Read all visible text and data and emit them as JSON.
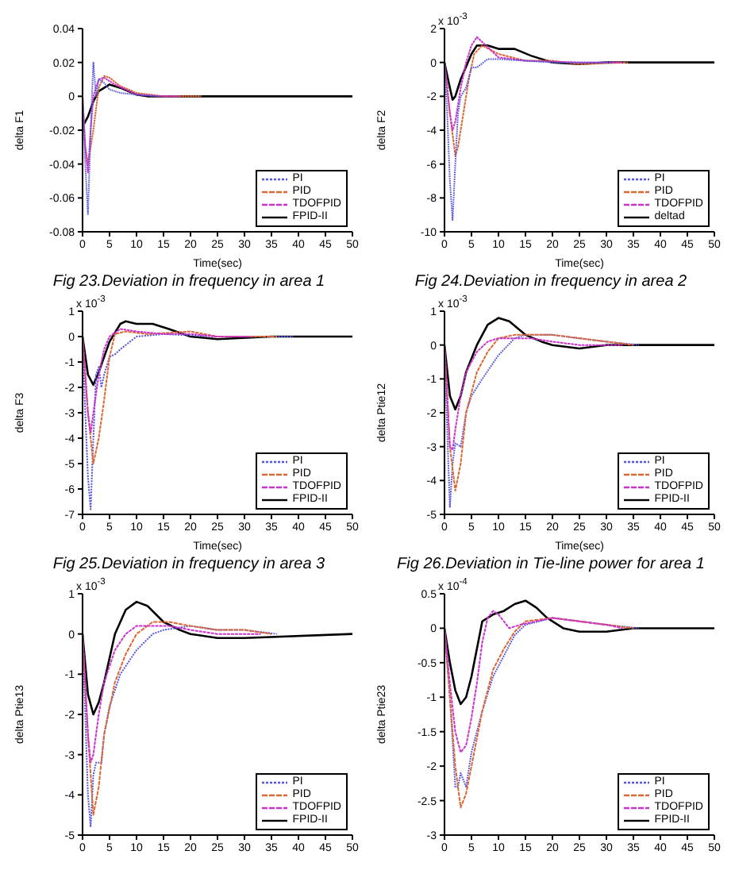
{
  "chart_data": [
    {
      "type": "line",
      "title": "Fig 23.Deviation in frequency in area 1",
      "xlabel": "Time(sec)",
      "ylabel": "delta F1",
      "xlim": [
        0,
        50
      ],
      "xticks": [
        0,
        5,
        10,
        15,
        20,
        25,
        30,
        35,
        40,
        45,
        50
      ],
      "ylim": [
        -0.08,
        0.04
      ],
      "yticks": [
        -0.08,
        -0.06,
        -0.04,
        -0.02,
        0,
        0.02,
        0.04
      ],
      "legend": "bottom right",
      "marker": "none",
      "series": [
        {
          "name": "PI",
          "color": "#5555dd",
          "line_style": "dotted",
          "x": [
            0,
            0.5,
            1,
            1.5,
            2,
            2.5,
            3,
            4,
            5,
            7,
            10,
            14
          ],
          "values": [
            0,
            -0.04,
            -0.07,
            -0.02,
            0.02,
            0.0,
            0.01,
            0.008,
            0.004,
            0.002,
            0.001,
            0
          ]
        },
        {
          "name": "PID",
          "color": "#dd6633",
          "line_style": "dashed",
          "x": [
            0,
            0.5,
            1,
            2,
            3,
            4,
            5,
            7,
            10,
            15,
            22
          ],
          "values": [
            0,
            -0.03,
            -0.04,
            -0.02,
            0.005,
            0.012,
            0.011,
            0.006,
            0.002,
            0,
            0
          ]
        },
        {
          "name": "TDOFPID",
          "color": "#cc33cc",
          "line_style": "dashed",
          "x": [
            0,
            0.5,
            1,
            1.5,
            2,
            3,
            4,
            6,
            10,
            15,
            18
          ],
          "values": [
            0,
            -0.03,
            -0.045,
            -0.02,
            0,
            0.01,
            0.011,
            0.007,
            0.001,
            0,
            0
          ]
        },
        {
          "name": "FPID-II",
          "color": "#000000",
          "line_style": "solid",
          "x": [
            0,
            1,
            2,
            3,
            5,
            7,
            10,
            12,
            20,
            50
          ],
          "values": [
            -0.018,
            -0.012,
            -0.003,
            0.003,
            0.007,
            0.005,
            0.001,
            0,
            0,
            0
          ]
        }
      ]
    },
    {
      "type": "line",
      "title": "Fig 24.Deviation in frequency in area 2",
      "xlabel": "Time(sec)",
      "ylabel": "delta F2",
      "annotations": [
        "x 10$^{-3}$"
      ],
      "xlim": [
        0,
        50
      ],
      "xticks": [
        0,
        5,
        10,
        15,
        20,
        25,
        30,
        35,
        40,
        45,
        50
      ],
      "ylim": [
        -10,
        2
      ],
      "yticks": [
        -10,
        -8,
        -6,
        -4,
        -2,
        0,
        2
      ],
      "legend": "bottom right",
      "marker": "none",
      "series": [
        {
          "name": "PI",
          "color": "#5555dd",
          "line_style": "dotted",
          "x": [
            0,
            0.5,
            1,
            1.5,
            2,
            2.5,
            3,
            4,
            5,
            6,
            8,
            10,
            15,
            20,
            31
          ],
          "values": [
            0,
            -3,
            -7,
            -9.3,
            -6,
            -3,
            -2,
            -1.5,
            -0.3,
            -0.3,
            0.2,
            0.2,
            0.1,
            0,
            0
          ]
        },
        {
          "name": "PID",
          "color": "#dd6633",
          "line_style": "dashed",
          "x": [
            0,
            1,
            2,
            2.5,
            3.5,
            4.5,
            5.5,
            7,
            10,
            15,
            20,
            25,
            34
          ],
          "values": [
            0,
            -3,
            -5.5,
            -5,
            -3,
            -1,
            0.5,
            1,
            0.5,
            0.1,
            0.1,
            -0.1,
            0
          ]
        },
        {
          "name": "TDOFPID",
          "color": "#cc33cc",
          "line_style": "dashed",
          "x": [
            0,
            1,
            1.5,
            2,
            3,
            4,
            5,
            6,
            7,
            10,
            15,
            25,
            33
          ],
          "values": [
            0,
            -3,
            -4,
            -3.5,
            -1.5,
            0,
            1,
            1.5,
            1.2,
            0.3,
            0.1,
            0,
            0
          ]
        },
        {
          "name": "deltad",
          "color": "#000000",
          "line_style": "solid",
          "x": [
            0,
            1,
            1.5,
            2,
            3,
            5,
            6,
            8,
            10,
            13,
            16,
            20,
            25,
            30,
            50
          ],
          "values": [
            0,
            -1.5,
            -2.2,
            -2,
            -1,
            0.5,
            1,
            1,
            0.8,
            0.8,
            0.4,
            0,
            -0.1,
            0,
            0
          ]
        }
      ]
    },
    {
      "type": "line",
      "title": "Fig 25.Deviation in frequency in area 3",
      "xlabel": "Time(sec)",
      "ylabel": "delta F3",
      "annotations": [
        "x 10$^{-3}$"
      ],
      "xlim": [
        0,
        50
      ],
      "xticks": [
        0,
        5,
        10,
        15,
        20,
        25,
        30,
        35,
        40,
        45,
        50
      ],
      "ylim": [
        -7,
        1
      ],
      "yticks": [
        -7,
        -6,
        -5,
        -4,
        -3,
        -2,
        -1,
        0,
        1
      ],
      "legend": "bottom right",
      "marker": "none",
      "series": [
        {
          "name": "PI",
          "color": "#5555dd",
          "line_style": "dotted",
          "x": [
            0,
            0.5,
            1,
            1.5,
            2,
            2.5,
            3,
            3.5,
            4,
            5,
            6,
            7,
            10,
            15,
            25,
            39
          ],
          "values": [
            0,
            -3,
            -5.5,
            -6.8,
            -4,
            -1.5,
            -1.2,
            -2,
            -1.5,
            -0.8,
            -0.7,
            -0.5,
            0,
            0.1,
            0,
            0
          ]
        },
        {
          "name": "PID",
          "color": "#dd6633",
          "line_style": "dashed",
          "x": [
            0,
            1,
            2,
            3,
            4,
            5,
            6,
            8,
            12,
            20,
            25,
            36
          ],
          "values": [
            0,
            -3,
            -5,
            -4,
            -2.5,
            -0.8,
            0.1,
            0.2,
            0.1,
            0.2,
            0,
            0
          ]
        },
        {
          "name": "TDOFPID",
          "color": "#cc33cc",
          "line_style": "dashed",
          "x": [
            0,
            1,
            1.5,
            2,
            3,
            4,
            5,
            7,
            10,
            15,
            20,
            25,
            31
          ],
          "values": [
            0,
            -3,
            -3.8,
            -3,
            -1.5,
            -0.5,
            0,
            0.3,
            0.2,
            0.1,
            0.1,
            0,
            0
          ]
        },
        {
          "name": "FPID-II",
          "color": "#000000",
          "line_style": "solid",
          "x": [
            0,
            1,
            2,
            3,
            4,
            5,
            7,
            8,
            10,
            13,
            16,
            20,
            25,
            35,
            50
          ],
          "values": [
            0,
            -1.5,
            -1.9,
            -1.4,
            -0.8,
            -0.2,
            0.5,
            0.6,
            0.5,
            0.5,
            0.3,
            0,
            -0.1,
            0,
            0
          ]
        }
      ]
    },
    {
      "type": "line",
      "title": "Fig 26.Deviation in Tie-line power for area 1",
      "xlabel": "Time(sec)",
      "ylabel": "delta Ptie12",
      "annotations": [
        "x 10$^{-3}$"
      ],
      "xlim": [
        0,
        50
      ],
      "xticks": [
        0,
        5,
        10,
        15,
        20,
        25,
        30,
        35,
        40,
        45,
        50
      ],
      "ylim": [
        -5,
        1
      ],
      "yticks": [
        -5,
        -4,
        -3,
        -2,
        -1,
        0,
        1
      ],
      "legend": "bottom right",
      "marker": "none",
      "series": [
        {
          "name": "PI",
          "color": "#5555dd",
          "line_style": "dotted",
          "x": [
            0,
            0.5,
            1,
            1.5,
            2,
            3,
            4,
            5,
            7,
            10,
            13,
            15,
            20,
            25,
            30,
            36
          ],
          "values": [
            0,
            -2.5,
            -4.8,
            -3.5,
            -2.9,
            -3,
            -2,
            -1.5,
            -1,
            -0.3,
            0.2,
            0.3,
            0.3,
            0.2,
            0.1,
            0
          ]
        },
        {
          "name": "PID",
          "color": "#dd6633",
          "line_style": "dashed",
          "x": [
            0,
            1,
            2,
            3,
            4,
            6,
            8,
            10,
            13,
            16,
            20,
            25,
            30,
            35
          ],
          "values": [
            0,
            -3,
            -4.3,
            -3.5,
            -2,
            -0.8,
            -0.2,
            0.2,
            0.3,
            0.3,
            0.3,
            0.2,
            0.1,
            0
          ]
        },
        {
          "name": "TDOFPID",
          "color": "#cc33cc",
          "line_style": "dashed",
          "x": [
            0,
            0.5,
            1,
            1.5,
            2,
            3,
            4,
            6,
            8,
            10,
            13,
            16,
            20,
            25,
            33
          ],
          "values": [
            0,
            -1.5,
            -3,
            -3.1,
            -2.5,
            -1.5,
            -0.8,
            -0.2,
            0.1,
            0.2,
            0.2,
            0.2,
            0.1,
            0,
            0
          ]
        },
        {
          "name": "FPID-II",
          "color": "#000000",
          "line_style": "solid",
          "x": [
            0,
            1,
            2,
            3,
            4,
            6,
            8,
            10,
            12,
            15,
            18,
            20,
            25,
            30,
            50
          ],
          "values": [
            0,
            -1.5,
            -1.9,
            -1.5,
            -0.8,
            0,
            0.6,
            0.8,
            0.7,
            0.3,
            0.1,
            0,
            -0.1,
            0,
            0
          ]
        }
      ]
    },
    {
      "type": "line",
      "ylabel": "delta Ptie13",
      "annotations": [
        "x 10$^{-3}$"
      ],
      "xlim": [
        0,
        50
      ],
      "xticks": [
        0,
        5,
        10,
        15,
        20,
        25,
        30,
        35,
        40,
        45,
        50
      ],
      "ylim": [
        -5,
        1
      ],
      "yticks": [
        -5,
        -4,
        -3,
        -2,
        -1,
        0,
        1
      ],
      "legend": "bottom right",
      "marker": "none",
      "series": [
        {
          "name": "PI",
          "color": "#5555dd",
          "line_style": "dotted",
          "x": [
            0,
            0.5,
            1,
            1.5,
            2,
            2.5,
            3.5,
            4,
            5,
            7,
            10,
            13,
            15,
            20,
            25,
            30,
            36
          ],
          "values": [
            0,
            -2,
            -4,
            -4.8,
            -3.5,
            -3.2,
            -3.2,
            -2.5,
            -1.8,
            -1,
            -0.4,
            0,
            0.1,
            0.2,
            0.1,
            0.1,
            0
          ]
        },
        {
          "name": "PID",
          "color": "#dd6633",
          "line_style": "dashed",
          "x": [
            0,
            1,
            2,
            3,
            4,
            6,
            8,
            10,
            13,
            16,
            20,
            25,
            30,
            35
          ],
          "values": [
            0,
            -2.5,
            -4.5,
            -3.8,
            -2.5,
            -1.2,
            -0.5,
            0,
            0.3,
            0.3,
            0.2,
            0.1,
            0.1,
            0
          ]
        },
        {
          "name": "TDOFPID",
          "color": "#cc33cc",
          "line_style": "dashed",
          "x": [
            0,
            1,
            1.5,
            2,
            3,
            4,
            6,
            8,
            10,
            13,
            16,
            20,
            25,
            33
          ],
          "values": [
            0,
            -2.5,
            -3.2,
            -3,
            -2,
            -1.2,
            -0.4,
            0,
            0.2,
            0.2,
            0.2,
            0.1,
            0,
            0
          ]
        },
        {
          "name": "FPID-II",
          "color": "#000000",
          "line_style": "solid",
          "x": [
            0,
            1,
            2,
            3,
            4,
            6,
            8,
            10,
            12,
            15,
            18,
            20,
            25,
            30,
            50
          ],
          "values": [
            0,
            -1.5,
            -2,
            -1.7,
            -1.2,
            0,
            0.6,
            0.8,
            0.7,
            0.3,
            0.1,
            0,
            -0.1,
            -0.1,
            0
          ]
        }
      ]
    },
    {
      "type": "line",
      "ylabel": "delta Ptie23",
      "annotations": [
        "x 10$^{-4}$"
      ],
      "xlim": [
        0,
        50
      ],
      "xticks": [
        0,
        5,
        10,
        15,
        20,
        25,
        30,
        35,
        40,
        45,
        50
      ],
      "ylim": [
        -3,
        0.5
      ],
      "yticks": [
        -3,
        -2.5,
        -2,
        -1.5,
        -1,
        -0.5,
        0,
        0.5
      ],
      "legend": "bottom right",
      "marker": "none",
      "series": [
        {
          "name": "PI",
          "color": "#5555dd",
          "line_style": "dotted",
          "x": [
            0,
            1,
            2,
            2.5,
            3,
            4,
            5,
            7,
            9,
            11,
            13,
            15,
            20,
            25,
            30,
            36
          ],
          "values": [
            0,
            -1,
            -2.3,
            -2.3,
            -2.1,
            -2.3,
            -1.8,
            -1.2,
            -0.7,
            -0.4,
            -0.1,
            0.05,
            0.15,
            0.1,
            0.05,
            0
          ]
        },
        {
          "name": "PID",
          "color": "#dd6633",
          "line_style": "dashed",
          "x": [
            0,
            1,
            2,
            3,
            4,
            5,
            7,
            9,
            11,
            13,
            15,
            20,
            25,
            30,
            35
          ],
          "values": [
            0,
            -1,
            -2,
            -2.6,
            -2.4,
            -2,
            -1.2,
            -0.6,
            -0.3,
            -0.05,
            0.1,
            0.15,
            0.1,
            0.05,
            0
          ]
        },
        {
          "name": "TDOFPID",
          "color": "#cc33cc",
          "line_style": "dashed",
          "x": [
            0,
            1,
            2,
            3,
            4,
            5,
            6,
            7,
            8,
            9,
            10,
            11,
            12,
            14,
            20,
            25,
            30,
            33
          ],
          "values": [
            0,
            -0.8,
            -1.5,
            -1.8,
            -1.7,
            -1.3,
            -0.8,
            -0.2,
            0.15,
            0.25,
            0.2,
            0.1,
            0,
            0.05,
            0.15,
            0.1,
            0.05,
            0
          ]
        },
        {
          "name": "FPID-II",
          "color": "#000000",
          "line_style": "solid",
          "x": [
            0,
            1,
            2,
            3,
            4,
            5,
            6,
            7,
            9,
            11,
            13,
            15,
            17,
            19,
            22,
            25,
            30,
            35,
            50
          ],
          "values": [
            0,
            -0.5,
            -0.9,
            -1.1,
            -1,
            -0.7,
            -0.3,
            0.1,
            0.2,
            0.25,
            0.35,
            0.4,
            0.3,
            0.15,
            0,
            -0.05,
            -0.05,
            0,
            0
          ]
        }
      ]
    }
  ]
}
